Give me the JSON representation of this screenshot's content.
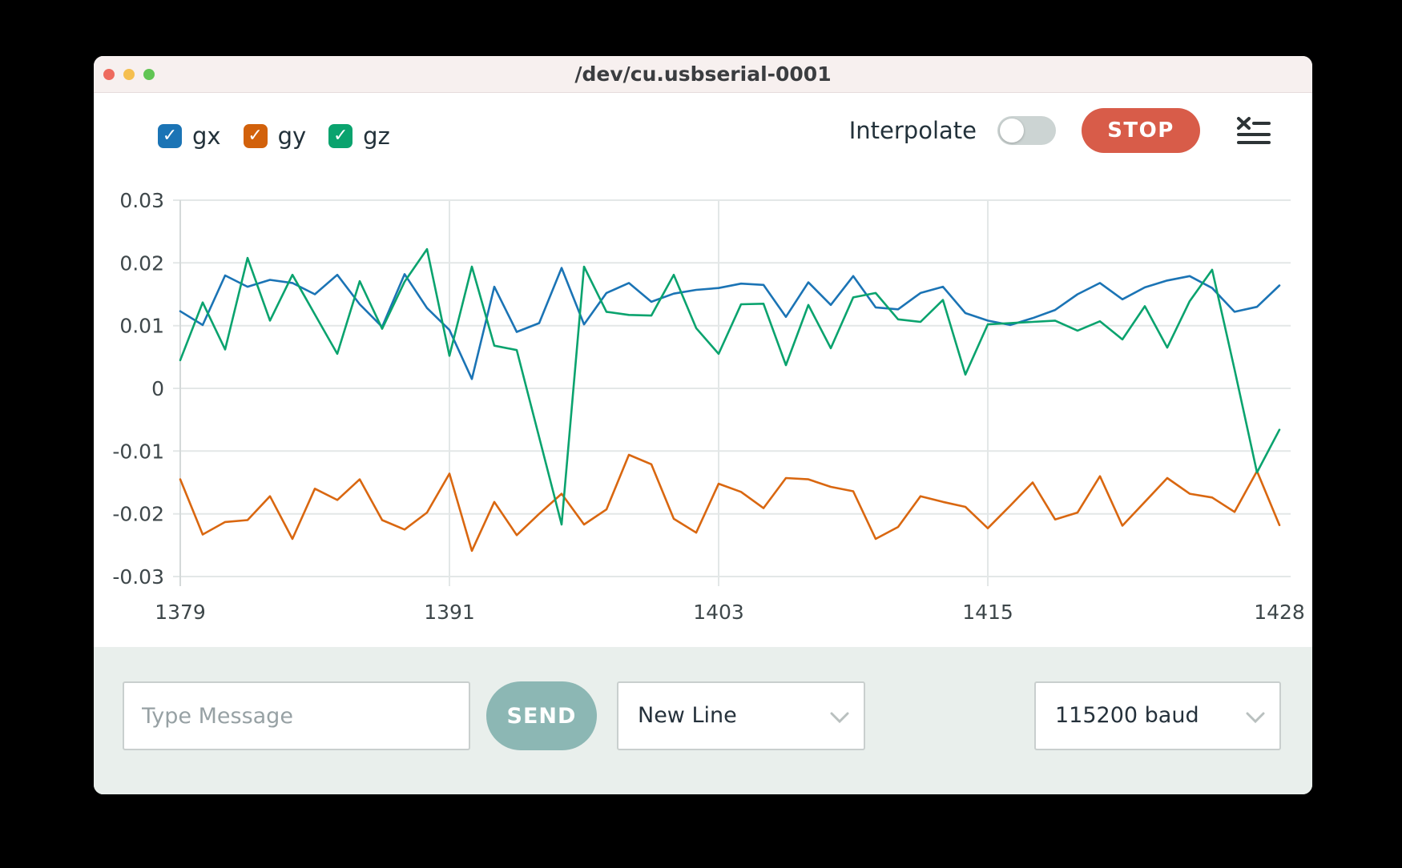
{
  "window": {
    "title": "/dev/cu.usbserial-0001"
  },
  "icons": {
    "check": "✓"
  },
  "colors": {
    "stop_button": "#d85c49",
    "send_button": "#8cb7b4",
    "toggle_off_track": "#ccd4d3",
    "titlebar_bg": "#f7f0ef",
    "footer_bg": "#e9efec"
  },
  "legend": [
    {
      "label": "gx",
      "color": "#1b74b5",
      "checked": true
    },
    {
      "label": "gy",
      "color": "#d2610b",
      "checked": true
    },
    {
      "label": "gz",
      "color": "#0aa36e",
      "checked": true
    }
  ],
  "controls": {
    "interpolate_label": "Interpolate",
    "interpolate_on": false,
    "stop_label": "STOP"
  },
  "footer": {
    "message_placeholder": "Type Message",
    "send_label": "SEND",
    "line_ending_selected": "New Line",
    "baud_selected": "115200 baud"
  },
  "chart_data": {
    "type": "line",
    "title": "",
    "xlabel": "",
    "ylabel": "",
    "xlim": [
      1379,
      1428
    ],
    "ylim": [
      -0.03,
      0.03
    ],
    "grid": "on",
    "grid_color": "#e3e7e7",
    "axis_color": "#d4d9d9",
    "legend_position": "top-left",
    "xticks": [
      {
        "value": 1379,
        "label": "1379",
        "grid": false
      },
      {
        "value": 1391,
        "label": "1391",
        "grid": true
      },
      {
        "value": 1403,
        "label": "1403",
        "grid": true
      },
      {
        "value": 1415,
        "label": "1415",
        "grid": true
      },
      {
        "value": 1428,
        "label": "1428",
        "grid": false
      }
    ],
    "yticks": [
      {
        "value": 0.03,
        "label": "0.03"
      },
      {
        "value": 0.02,
        "label": "0.02"
      },
      {
        "value": 0.01,
        "label": "0.01"
      },
      {
        "value": 0,
        "label": "0"
      },
      {
        "value": -0.01,
        "label": "-0.01"
      },
      {
        "value": -0.02,
        "label": "-0.02"
      },
      {
        "value": -0.03,
        "label": "-0.03"
      }
    ],
    "x": [
      1379,
      1380,
      1381,
      1382,
      1383,
      1384,
      1385,
      1386,
      1387,
      1388,
      1389,
      1390,
      1391,
      1392,
      1393,
      1394,
      1395,
      1396,
      1397,
      1398,
      1399,
      1400,
      1401,
      1402,
      1403,
      1404,
      1405,
      1406,
      1407,
      1408,
      1409,
      1410,
      1411,
      1412,
      1413,
      1414,
      1415,
      1416,
      1417,
      1418,
      1419,
      1420,
      1421,
      1422,
      1423,
      1424,
      1425,
      1426,
      1427,
      1428
    ],
    "series": [
      {
        "name": "gx",
        "color": "#1b74b5",
        "values": [
          0.0123,
          0.0101,
          0.018,
          0.0162,
          0.0173,
          0.0168,
          0.015,
          0.0181,
          0.0134,
          0.0098,
          0.0182,
          0.0128,
          0.0093,
          0.0015,
          0.0162,
          0.009,
          0.0104,
          0.0192,
          0.0102,
          0.0152,
          0.0168,
          0.0138,
          0.0151,
          0.0157,
          0.016,
          0.0167,
          0.0165,
          0.0114,
          0.0169,
          0.0133,
          0.0179,
          0.0129,
          0.0126,
          0.0152,
          0.0162,
          0.012,
          0.0108,
          0.0101,
          0.0112,
          0.0125,
          0.015,
          0.0168,
          0.0142,
          0.0161,
          0.0172,
          0.0179,
          0.016,
          0.0122,
          0.013,
          0.0164
        ]
      },
      {
        "name": "gy",
        "color": "#d96710",
        "values": [
          -0.0145,
          -0.0233,
          -0.0213,
          -0.021,
          -0.0172,
          -0.024,
          -0.016,
          -0.0178,
          -0.0145,
          -0.021,
          -0.0225,
          -0.0198,
          -0.0136,
          -0.0259,
          -0.0181,
          -0.0234,
          -0.02,
          -0.0168,
          -0.0217,
          -0.0193,
          -0.0106,
          -0.0121,
          -0.0208,
          -0.023,
          -0.0152,
          -0.0165,
          -0.0191,
          -0.0143,
          -0.0145,
          -0.0157,
          -0.0164,
          -0.024,
          -0.0221,
          -0.0172,
          -0.0181,
          -0.0189,
          -0.0223,
          -0.0187,
          -0.015,
          -0.0209,
          -0.0198,
          -0.014,
          -0.0219,
          -0.0181,
          -0.0143,
          -0.0168,
          -0.0174,
          -0.0197,
          -0.0132,
          -0.0218
        ]
      },
      {
        "name": "gz",
        "color": "#0aa36e",
        "values": [
          0.0045,
          0.0137,
          0.0062,
          0.0208,
          0.0108,
          0.0181,
          0.0118,
          0.0055,
          0.0171,
          0.0095,
          0.017,
          0.0222,
          0.0052,
          0.0194,
          0.0068,
          0.0061,
          -0.0078,
          -0.0217,
          0.0194,
          0.0122,
          0.0117,
          0.0116,
          0.0181,
          0.0096,
          0.0055,
          0.0134,
          0.0135,
          0.0037,
          0.0133,
          0.0064,
          0.0145,
          0.0152,
          0.011,
          0.0106,
          0.0141,
          0.0022,
          0.0102,
          0.0104,
          0.0106,
          0.0108,
          0.0092,
          0.0107,
          0.0078,
          0.0131,
          0.0065,
          0.0139,
          0.0189,
          0.003,
          -0.0134,
          -0.0066
        ]
      }
    ]
  }
}
